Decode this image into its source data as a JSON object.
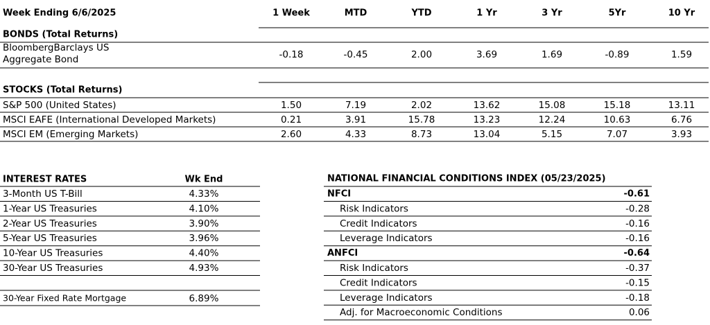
{
  "header": {
    "title": "Week Ending 6/6/2025",
    "columns": [
      "1 Week",
      "MTD",
      "YTD",
      "1 Yr",
      "3 Yr",
      "5Yr",
      "10 Yr"
    ]
  },
  "bonds": {
    "title": "BONDS (Total Returns)",
    "rows": [
      {
        "label": [
          "BloombergBarclays US",
          "Aggregate Bond"
        ],
        "values": [
          "-0.18",
          "-0.45",
          "2.00",
          "3.69",
          "1.69",
          "-0.89",
          "1.59"
        ]
      }
    ]
  },
  "stocks": {
    "title": "STOCKS (Total Returns)",
    "rows": [
      {
        "label": [
          "S&P 500 (United States)"
        ],
        "values": [
          "1.50",
          "7.19",
          "2.02",
          "13.62",
          "15.08",
          "15.18",
          "13.11"
        ]
      },
      {
        "label": [
          "MSCI EAFE (International Developed Markets)"
        ],
        "values": [
          "0.21",
          "3.91",
          "15.78",
          "13.23",
          "12.24",
          "10.63",
          "6.76"
        ]
      },
      {
        "label": [
          "MSCI EM (Emerging Markets)"
        ],
        "values": [
          "2.60",
          "4.33",
          "8.73",
          "13.04",
          "5.15",
          "7.07",
          "3.93"
        ]
      }
    ]
  },
  "interest_rates": {
    "title": "INTEREST RATES",
    "column": "Wk End",
    "rows": [
      [
        "3-Month US T-Bill",
        "4.33%"
      ],
      [
        "1-Year US Treasuries",
        "4.10%"
      ],
      [
        "2-Year US Treasuries",
        "3.90%"
      ],
      [
        "5-Year US Treasuries",
        "3.96%"
      ],
      [
        "10-Year US Treasuries",
        "4.40%"
      ],
      [
        "30-Year US Treasuries",
        "4.93%"
      ]
    ],
    "mortgage": [
      "30-Year Fixed Rate Mortgage",
      "6.89%"
    ]
  },
  "nfci": {
    "title": "NATIONAL FINANCIAL CONDITIONS INDEX (05/23/2025)",
    "groups": [
      {
        "label": "NFCI",
        "value": "-0.61",
        "items": [
          [
            "Risk Indicators",
            "-0.28"
          ],
          [
            "Credit Indicators",
            "-0.16"
          ],
          [
            "Leverage Indicators",
            "-0.16"
          ]
        ]
      },
      {
        "label": "ANFCI",
        "value": "-0.64",
        "items": [
          [
            "Risk Indicators",
            "-0.37"
          ],
          [
            "Credit Indicators",
            "-0.15"
          ],
          [
            "Leverage Indicators",
            "-0.18"
          ],
          [
            "Adj. for Macroeconomic Conditions",
            "0.06"
          ]
        ]
      }
    ]
  }
}
